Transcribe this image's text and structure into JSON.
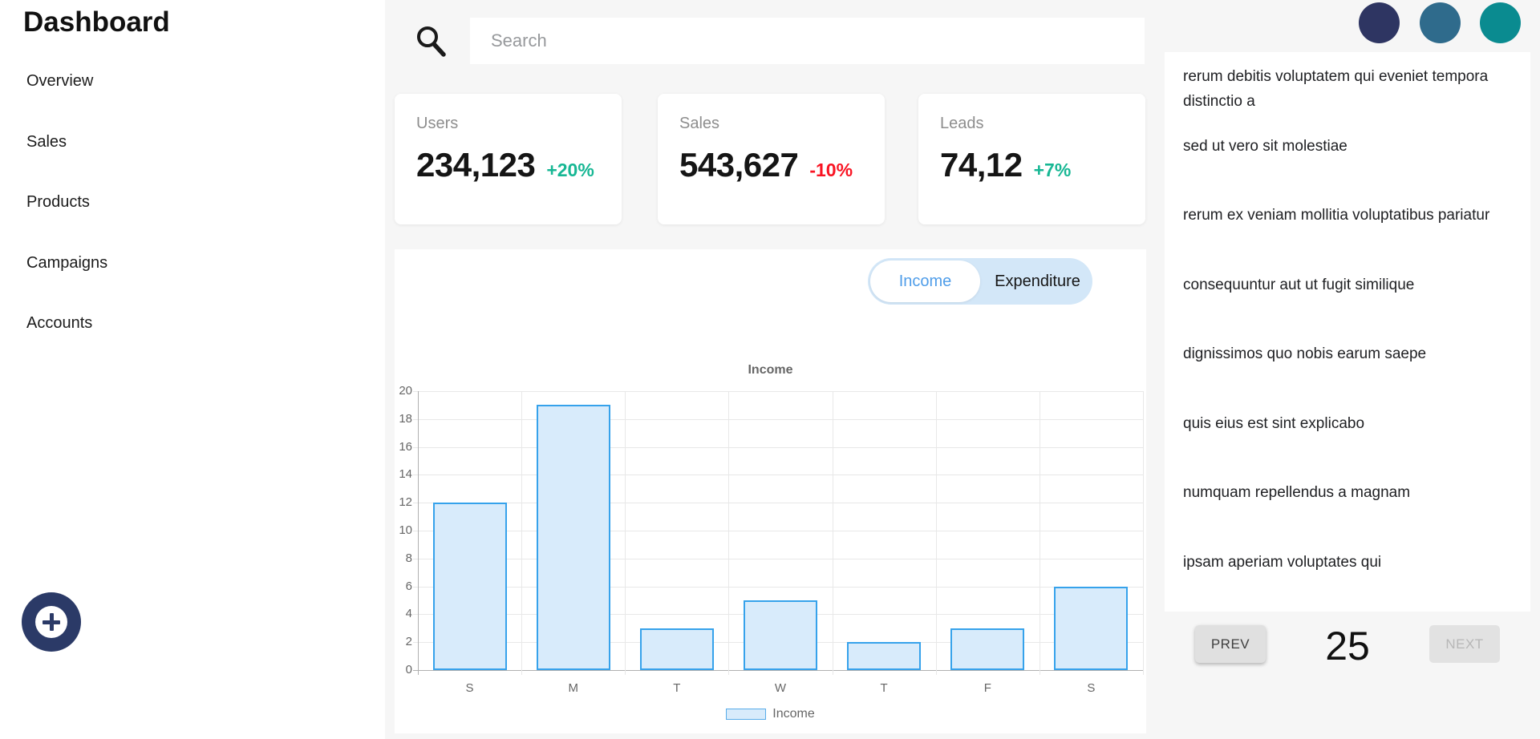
{
  "sidebar": {
    "title": "Dashboard",
    "items": [
      {
        "label": "Overview"
      },
      {
        "label": "Sales"
      },
      {
        "label": "Products"
      },
      {
        "label": "Campaigns"
      },
      {
        "label": "Accounts"
      }
    ]
  },
  "topbar": {
    "search_placeholder": "Search",
    "avatars": [
      {
        "name": "avatar-1",
        "color": "#2e3562"
      },
      {
        "name": "avatar-2",
        "color": "#2f6b8c"
      },
      {
        "name": "avatar-3",
        "color": "#0a8b90"
      }
    ]
  },
  "stats": [
    {
      "label": "Users",
      "value": "234,123",
      "delta": "+20%",
      "delta_color": "#17b794"
    },
    {
      "label": "Sales",
      "value": "543,627",
      "delta": "-10%",
      "delta_color": "#f91423"
    },
    {
      "label": "Leads",
      "value": "74,12",
      "delta": "+7%",
      "delta_color": "#17b794"
    }
  ],
  "chart_panel": {
    "toggle": {
      "options": [
        "Income",
        "Expenditure"
      ],
      "active": "Income",
      "active_text_color": "#4f9de9",
      "pill_background": "#d3e7f8"
    }
  },
  "chart_data": {
    "type": "bar",
    "title": "Income",
    "categories": [
      "S",
      "M",
      "T",
      "W",
      "T",
      "F",
      "S"
    ],
    "series": [
      {
        "name": "Income",
        "values": [
          12,
          19,
          3,
          5,
          2,
          3,
          6
        ]
      }
    ],
    "ylim": [
      0,
      20
    ],
    "ytick_step": 2,
    "grid": true,
    "legend_position": "bottom",
    "bar_fill": "#d8ebfb",
    "bar_border": "#36a2eb"
  },
  "right_panel": {
    "items": [
      "rerum debitis voluptatem qui eveniet tempora distinctio a",
      "sed ut vero sit molestiae",
      "rerum ex veniam mollitia voluptatibus pariatur",
      "consequuntur aut ut fugit similique",
      "dignissimos quo nobis earum saepe",
      "quis eius est sint explicabo",
      "numquam repellendus a magnam",
      "ipsam aperiam voluptates qui"
    ],
    "pagination": {
      "prev": "PREV",
      "page": "25",
      "next": "NEXT",
      "next_disabled": true
    }
  }
}
